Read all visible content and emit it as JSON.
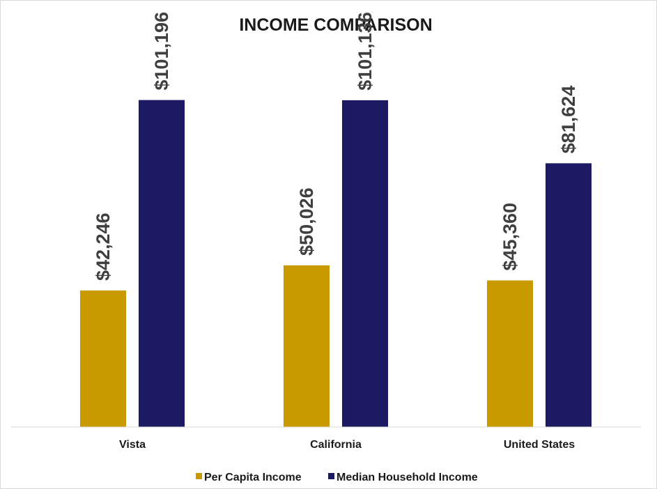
{
  "chart_data": {
    "type": "bar",
    "title": "INCOME COMPARISON",
    "categories": [
      "Vista",
      "California",
      "United States"
    ],
    "series": [
      {
        "name": "Per Capita Income",
        "color": "#C89A00",
        "values": [
          42246,
          50026,
          45360
        ],
        "labels": [
          "$42,246",
          "$50,026",
          "$45,360"
        ]
      },
      {
        "name": "Median Household Income",
        "color": "#1C1A63",
        "values": [
          101196,
          101136,
          81624
        ],
        "labels": [
          "$101,196",
          "$101,136",
          "$81,624"
        ]
      }
    ],
    "ylim": [
      0,
      130000
    ],
    "grid": false,
    "legend_position": "bottom"
  }
}
